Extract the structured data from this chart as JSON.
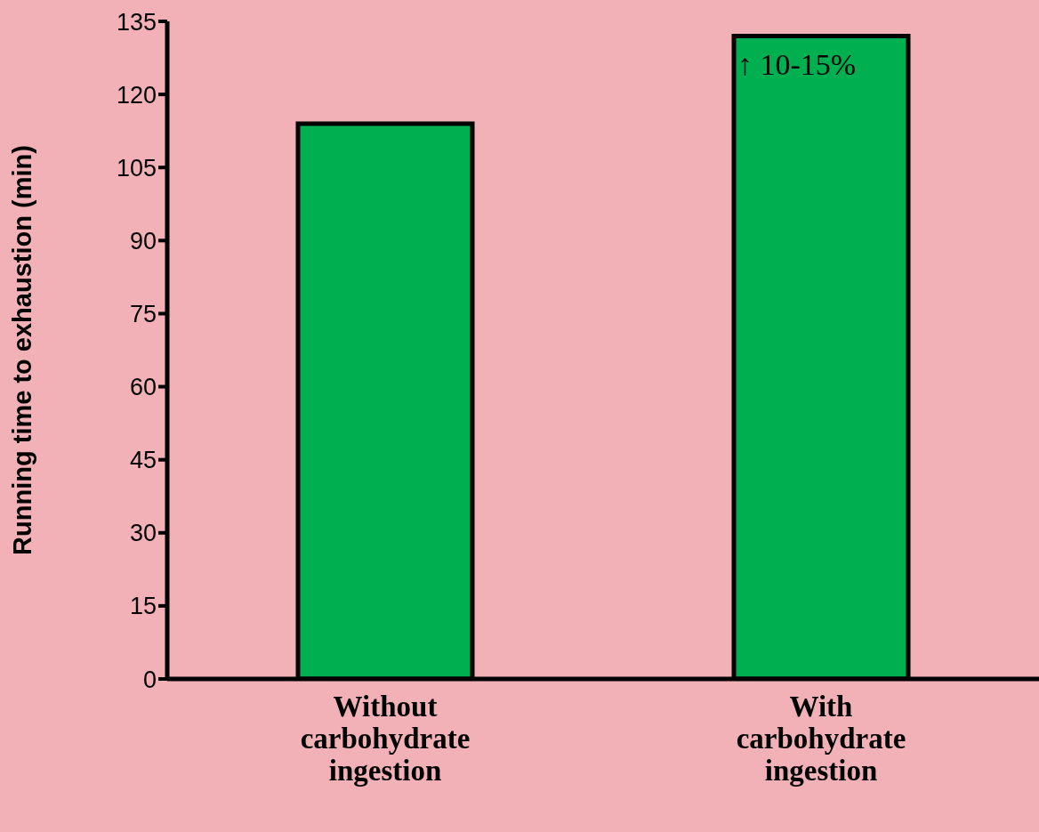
{
  "chart_data": {
    "type": "bar",
    "ylabel": "Running time to exhaustion (min)",
    "categories": [
      "Without carbohydrate ingestion",
      "With carbohydrate ingestion"
    ],
    "values": [
      114,
      132
    ],
    "color": "#00b050",
    "ylim": [
      0,
      135
    ],
    "yticks": [
      0,
      15,
      30,
      45,
      60,
      75,
      90,
      105,
      120,
      135
    ],
    "annotations": [
      {
        "text": "↑ 10-15%",
        "x": "With carbohydrate ingestion",
        "y": 132
      }
    ]
  }
}
